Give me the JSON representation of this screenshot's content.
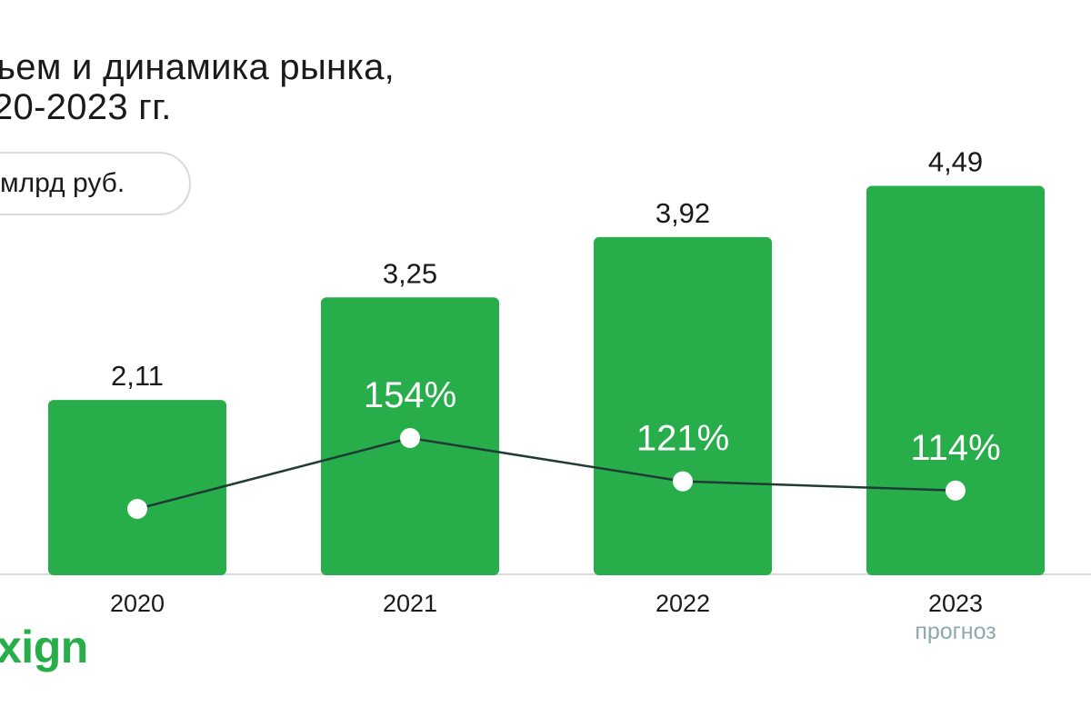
{
  "title_lines": [
    "ъем и динамика рынка,",
    "20-2023 гг."
  ],
  "unit_label": "млрд руб.",
  "logo_text": "xign",
  "colors": {
    "bar": "#27ae4a",
    "line": "#1f3b34",
    "axis": "#d9d9d9",
    "note": "#8fa8ad",
    "text": "#1a1a1a",
    "marker": "#ffffff"
  },
  "chart_data": {
    "type": "bar",
    "categories": [
      "2020",
      "2021",
      "2022",
      "2023"
    ],
    "category_notes": [
      "",
      "",
      "",
      "прогноз"
    ],
    "series": [
      {
        "type": "bar",
        "values": [
          2.11,
          3.25,
          3.92,
          4.49
        ],
        "labels": [
          "2,11",
          "3,25",
          "3,92",
          "4,49"
        ]
      },
      {
        "type": "line",
        "values": [
          100,
          154,
          121,
          114
        ],
        "labels": [
          "",
          "154%",
          "121%",
          "114%"
        ]
      }
    ],
    "xlabel": "",
    "ylabel": "",
    "legend": "none",
    "grid": false
  }
}
